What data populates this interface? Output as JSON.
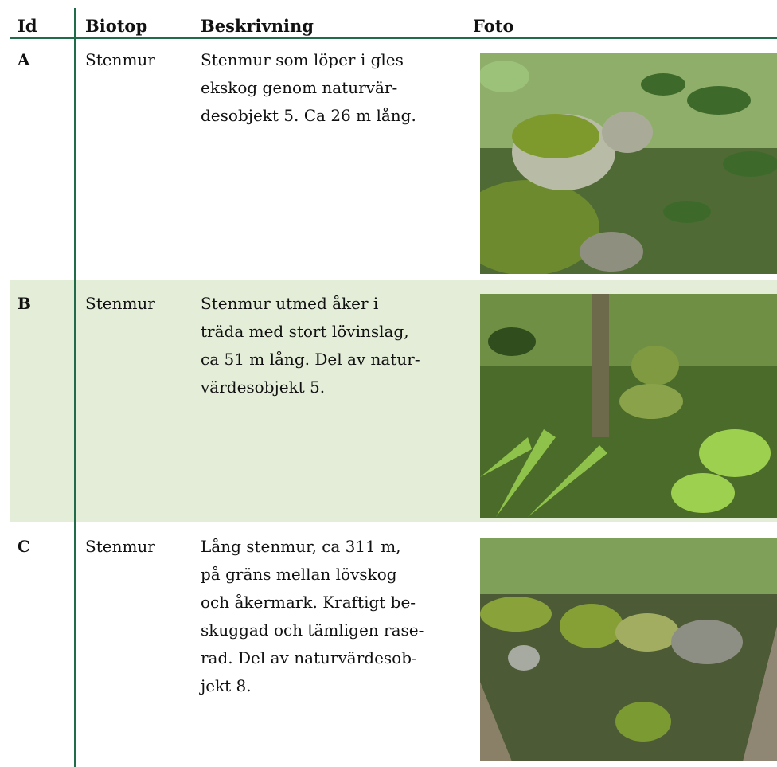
{
  "header": {
    "id": "Id",
    "biotope": "Biotop",
    "description": "Beskrivning",
    "photo": "Foto"
  },
  "rows": [
    {
      "id": "A",
      "biotope": "Stenmur",
      "description": [
        "Stenmur som löper i gles",
        "ekskog genom naturvär-",
        "desobjekt 5. Ca 26 m lång."
      ]
    },
    {
      "id": "B",
      "biotope": "Stenmur",
      "description": [
        "Stenmur utmed åker i",
        "träda med stort lövinslag,",
        "ca 51 m lång. Del av natur-",
        "värdesobjekt 5."
      ]
    },
    {
      "id": "C",
      "biotope": "Stenmur",
      "description": [
        "Lång stenmur, ca 311 m,",
        "på gräns mellan lövskog",
        "och åkermark. Kraftigt be-",
        "skuggad och tämligen rase-",
        "rad. Del av naturvärdesob-",
        "jekt 8."
      ]
    }
  ]
}
